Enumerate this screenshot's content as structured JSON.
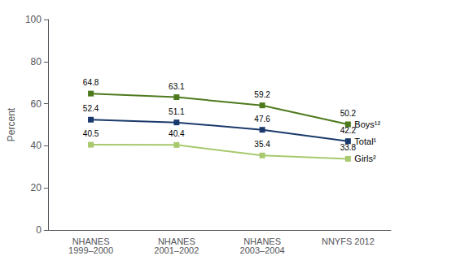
{
  "chart_data": {
    "type": "line",
    "categories": [
      "NHANES\n1999–2000",
      "NHANES\n2001–2002",
      "NHANES\n2003–2004",
      "NNYFS 2012"
    ],
    "series": [
      {
        "name": "Boys¹²",
        "color": "#4e7a1e",
        "values": [
          64.8,
          63.1,
          59.2,
          50.2
        ],
        "marker": "square"
      },
      {
        "name": "Total¹",
        "color": "#1a3a6b",
        "values": [
          52.4,
          51.1,
          47.6,
          42.2
        ],
        "marker": "square"
      },
      {
        "name": "Girls²",
        "color": "#a8c96e",
        "values": [
          40.5,
          40.4,
          35.4,
          33.8
        ],
        "marker": "square"
      }
    ],
    "ylabel": "Percent",
    "ylim": [
      0,
      100
    ],
    "yticks": [
      0,
      20,
      40,
      60,
      80,
      100
    ],
    "grid": false,
    "data_labels": true
  }
}
